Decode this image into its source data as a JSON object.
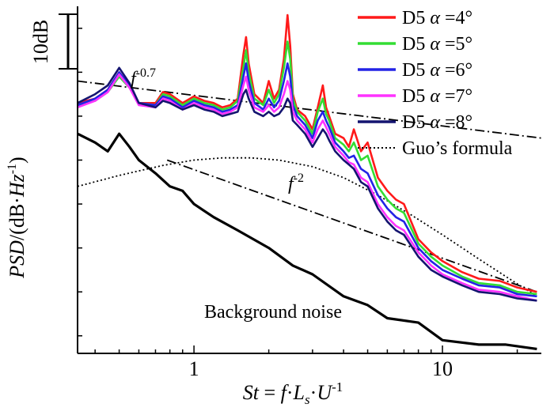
{
  "chart_data": {
    "type": "line",
    "xscale": "log",
    "xlim": [
      0.34,
      25
    ],
    "ylim": [
      -74,
      5
    ],
    "xticks": [
      1,
      10
    ],
    "xtick_labels": [
      "1",
      "10"
    ],
    "xlabel": {
      "st": "St",
      "eq": " = ",
      "f": "f",
      "dot1": "·",
      "L": "L",
      "s": "s",
      "dot2": "·",
      "U": "U",
      "exp": "-1"
    },
    "ylabel": {
      "psd": "PSD",
      "unit_open": "/(dB·",
      "hz": "Hz",
      "exp": "-1",
      "unit_close": ")"
    },
    "scale_bar": {
      "label": "10dB",
      "span_db": 10
    },
    "annotations": {
      "f07": {
        "base": "f",
        "exp": "-0.7"
      },
      "f2": {
        "base": "f",
        "exp": "-2"
      },
      "background": "Background noise"
    },
    "legend": [
      {
        "prefix": "D5 ",
        "alpha": "α",
        "suffix": " =4°",
        "color": "#ff1a1a"
      },
      {
        "prefix": "D5 ",
        "alpha": "α",
        "suffix": " =5°",
        "color": "#33dd33"
      },
      {
        "prefix": "D5 ",
        "alpha": "α",
        "suffix": " =6°",
        "color": "#2323e6"
      },
      {
        "prefix": "D5 ",
        "alpha": "α",
        "suffix": " =7°",
        "color": "#ff33ff"
      },
      {
        "prefix": "D5 ",
        "alpha": "α",
        "suffix": " =8°",
        "color": "#141470"
      },
      {
        "prefix": "",
        "alpha": "",
        "suffix": "Guo’s formula",
        "color": "#000000",
        "dash": "dotted"
      }
    ],
    "reference_lines": [
      {
        "name": "f^-0.7",
        "slope_db_per_decade": -7,
        "x": [
          0.34,
          25
        ],
        "y": [
          -12,
          -25
        ],
        "style": "dashdot"
      },
      {
        "name": "f^-2",
        "slope_db_per_decade": -20,
        "x": [
          0.78,
          24
        ],
        "y": [
          -30,
          -60
        ],
        "style": "dashdot"
      }
    ],
    "guo_formula": {
      "x": [
        0.34,
        0.5,
        0.75,
        1.0,
        1.3,
        1.7,
        2.2,
        3.0,
        4.0,
        5.5,
        7.5,
        10,
        14,
        18,
        24
      ],
      "y": [
        -36,
        -33.5,
        -31.2,
        -30,
        -29.5,
        -29.5,
        -30,
        -31.5,
        -34,
        -38,
        -42.5,
        -47,
        -52.5,
        -56.5,
        -61
      ]
    },
    "background_noise": {
      "x": [
        0.34,
        0.4,
        0.45,
        0.5,
        0.55,
        0.6,
        0.7,
        0.8,
        0.9,
        1.0,
        1.2,
        1.5,
        2.0,
        2.5,
        3.0,
        4.0,
        5.0,
        6.0,
        8.0,
        10,
        14,
        18,
        24
      ],
      "y": [
        -24,
        -26,
        -28,
        -24,
        -27,
        -30,
        -33,
        -36,
        -37,
        -40,
        -43,
        -46,
        -50,
        -54,
        -56,
        -61,
        -63,
        -66,
        -67,
        -71,
        -72,
        -72,
        -73
      ]
    },
    "series": [
      {
        "name": "D5 α=4°",
        "color": "#ff1a1a",
        "x": [
          0.34,
          0.4,
          0.45,
          0.5,
          0.55,
          0.6,
          0.7,
          0.75,
          0.8,
          0.9,
          1.0,
          1.1,
          1.2,
          1.3,
          1.4,
          1.5,
          1.58,
          1.62,
          1.66,
          1.75,
          1.9,
          2.0,
          2.1,
          2.2,
          2.3,
          2.38,
          2.44,
          2.5,
          2.6,
          2.8,
          3.0,
          3.15,
          3.3,
          3.4,
          3.5,
          3.7,
          4.0,
          4.2,
          4.4,
          4.7,
          5.0,
          5.5,
          6.0,
          6.5,
          7.0,
          8.0,
          9.0,
          10,
          12,
          14,
          17,
          20,
          24
        ],
        "y": [
          -17,
          -16,
          -14,
          -10,
          -13,
          -17,
          -17,
          -14.5,
          -15,
          -17,
          -15.5,
          -16.5,
          -17,
          -18,
          -17.5,
          -16,
          -6,
          -2,
          -8,
          -15,
          -17,
          -12,
          -16,
          -14,
          -7,
          3,
          -4,
          -15,
          -18.5,
          -20,
          -23,
          -18,
          -13,
          -18,
          -20,
          -24,
          -25,
          -27,
          -23,
          -28,
          -26,
          -34,
          -37,
          -39,
          -40,
          -48,
          -51,
          -53,
          -55.5,
          -57,
          -57.5,
          -59,
          -60
        ]
      },
      {
        "name": "D5 α=5°",
        "color": "#33dd33",
        "x": [
          0.34,
          0.4,
          0.45,
          0.5,
          0.55,
          0.6,
          0.7,
          0.75,
          0.8,
          0.9,
          1.0,
          1.1,
          1.2,
          1.3,
          1.4,
          1.5,
          1.58,
          1.62,
          1.66,
          1.75,
          1.9,
          2.0,
          2.1,
          2.2,
          2.3,
          2.38,
          2.44,
          2.5,
          2.6,
          2.8,
          3.0,
          3.15,
          3.3,
          3.4,
          3.5,
          3.7,
          4.0,
          4.2,
          4.4,
          4.7,
          5.0,
          5.5,
          6.0,
          6.5,
          7.0,
          8.0,
          9.0,
          10,
          12,
          14,
          17,
          20,
          24
        ],
        "y": [
          -17.5,
          -16.5,
          -14.5,
          -11,
          -13.5,
          -17,
          -17.5,
          -15,
          -15.5,
          -17.5,
          -16,
          -17,
          -17.5,
          -18.5,
          -18,
          -16.5,
          -9,
          -5,
          -10,
          -16,
          -17.5,
          -14,
          -17,
          -15,
          -9,
          -3,
          -7,
          -16,
          -19,
          -21,
          -24,
          -19,
          -16,
          -19.5,
          -21,
          -25,
          -26.5,
          -28,
          -26,
          -30,
          -29,
          -36,
          -39,
          -41,
          -42,
          -49,
          -52,
          -54,
          -56.5,
          -58,
          -58.5,
          -60,
          -60.5
        ]
      },
      {
        "name": "D5 α=6°",
        "color": "#2323e6",
        "x": [
          0.34,
          0.4,
          0.45,
          0.5,
          0.55,
          0.6,
          0.7,
          0.75,
          0.8,
          0.9,
          1.0,
          1.1,
          1.2,
          1.3,
          1.4,
          1.5,
          1.58,
          1.62,
          1.66,
          1.75,
          1.9,
          2.0,
          2.1,
          2.2,
          2.3,
          2.38,
          2.44,
          2.5,
          2.6,
          2.8,
          3.0,
          3.15,
          3.3,
          3.4,
          3.5,
          3.7,
          4.0,
          4.2,
          4.4,
          4.7,
          5.0,
          5.5,
          6.0,
          6.5,
          7.0,
          8.0,
          9.0,
          10,
          12,
          14,
          17,
          20,
          24
        ],
        "y": [
          -17.5,
          -16,
          -14,
          -10,
          -13,
          -17,
          -17.5,
          -15.5,
          -16,
          -18,
          -16.5,
          -17.5,
          -18,
          -19,
          -18.5,
          -17.5,
          -11,
          -8,
          -12,
          -17,
          -18.5,
          -16,
          -18,
          -16.5,
          -12,
          -8,
          -11,
          -17.5,
          -20,
          -22,
          -25,
          -21,
          -19,
          -21,
          -22.5,
          -26,
          -28,
          -29.5,
          -29,
          -32,
          -33,
          -38,
          -41,
          -43,
          -44,
          -50,
          -53,
          -55,
          -57,
          -58.5,
          -59,
          -60.5,
          -61
        ]
      },
      {
        "name": "D5 α=7°",
        "color": "#ff33ff",
        "x": [
          0.34,
          0.4,
          0.45,
          0.5,
          0.55,
          0.6,
          0.7,
          0.75,
          0.8,
          0.9,
          1.0,
          1.1,
          1.2,
          1.3,
          1.4,
          1.5,
          1.58,
          1.62,
          1.66,
          1.75,
          1.9,
          2.0,
          2.1,
          2.2,
          2.3,
          2.38,
          2.44,
          2.5,
          2.6,
          2.8,
          3.0,
          3.15,
          3.3,
          3.4,
          3.5,
          3.7,
          4.0,
          4.2,
          4.4,
          4.7,
          5.0,
          5.5,
          6.0,
          6.5,
          7.0,
          8.0,
          9.0,
          10,
          12,
          14,
          17,
          20,
          24
        ],
        "y": [
          -18,
          -16.5,
          -14.5,
          -10.5,
          -13.5,
          -17.5,
          -18,
          -16,
          -16.5,
          -18.5,
          -17,
          -18,
          -18.5,
          -19.5,
          -19,
          -18,
          -13,
          -11,
          -14,
          -18,
          -19,
          -17.5,
          -19,
          -18,
          -15,
          -12,
          -14,
          -19,
          -21,
          -23,
          -26,
          -23,
          -21,
          -22.5,
          -24,
          -27,
          -29,
          -30.5,
          -31,
          -34,
          -35,
          -40,
          -43,
          -45,
          -46,
          -51,
          -54,
          -56,
          -58,
          -59.5,
          -60,
          -61,
          -62
        ]
      },
      {
        "name": "D5 α=8°",
        "color": "#141470",
        "x": [
          0.34,
          0.4,
          0.45,
          0.5,
          0.55,
          0.6,
          0.7,
          0.75,
          0.8,
          0.9,
          1.0,
          1.1,
          1.2,
          1.3,
          1.4,
          1.5,
          1.58,
          1.62,
          1.66,
          1.75,
          1.9,
          2.0,
          2.1,
          2.2,
          2.3,
          2.38,
          2.44,
          2.5,
          2.6,
          2.8,
          3.0,
          3.15,
          3.3,
          3.4,
          3.5,
          3.7,
          4.0,
          4.2,
          4.4,
          4.7,
          5.0,
          5.5,
          6.0,
          6.5,
          7.0,
          8.0,
          9.0,
          10,
          12,
          14,
          17,
          20,
          24
        ],
        "y": [
          -17,
          -15,
          -13,
          -9,
          -12.5,
          -17,
          -18,
          -16.5,
          -17,
          -18.5,
          -17.5,
          -18.5,
          -19,
          -20,
          -19.5,
          -19,
          -15,
          -14,
          -16,
          -19,
          -20,
          -19,
          -20,
          -19.5,
          -18,
          -16,
          -17,
          -21,
          -22,
          -24,
          -27,
          -25,
          -23,
          -24,
          -25.5,
          -28,
          -30,
          -31,
          -32,
          -35,
          -36,
          -41,
          -44,
          -46,
          -47,
          -52,
          -55,
          -56.5,
          -58.5,
          -60,
          -60.5,
          -61.5,
          -62
        ]
      }
    ]
  }
}
